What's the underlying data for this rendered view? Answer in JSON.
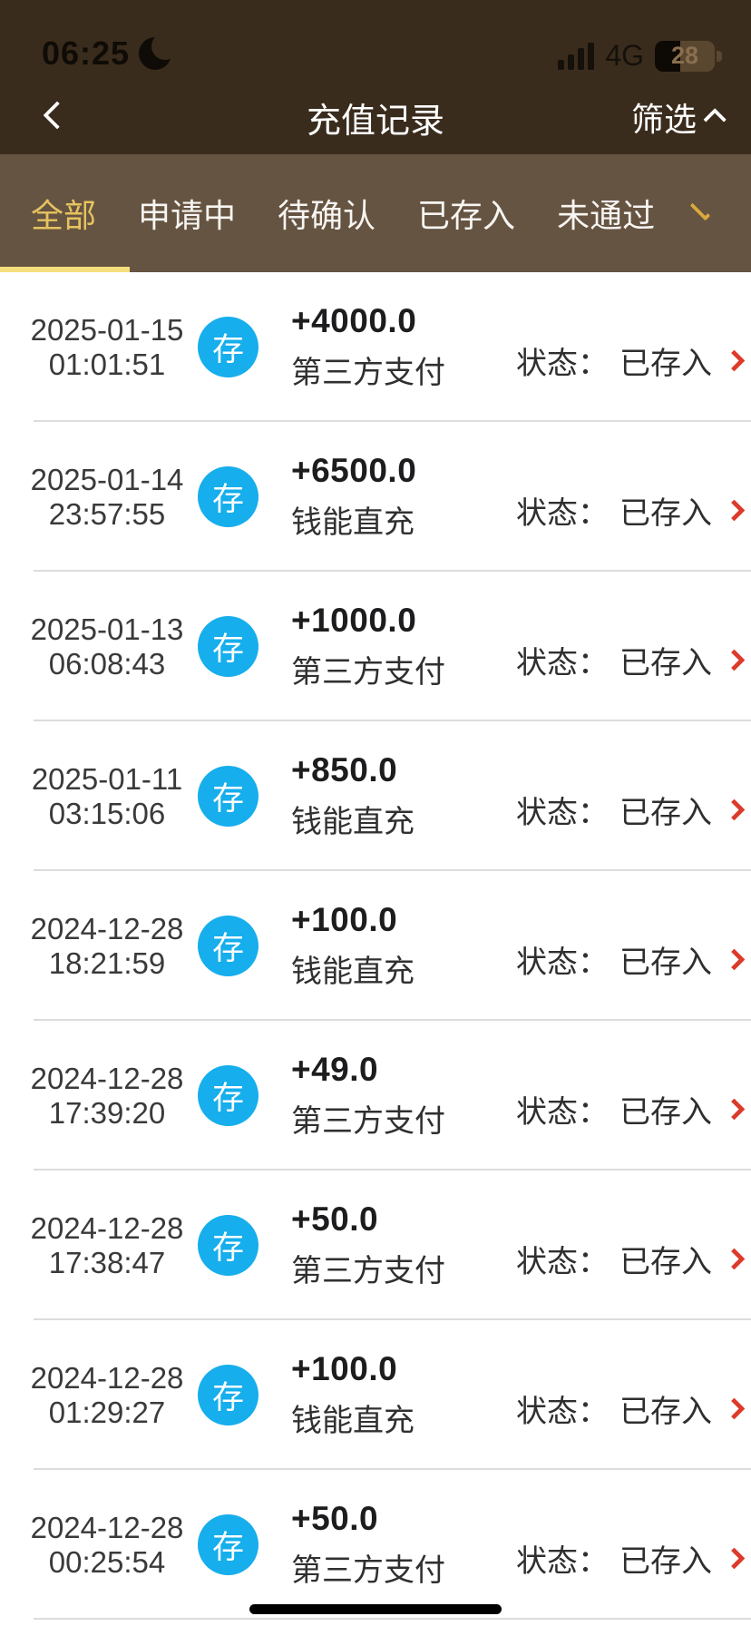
{
  "status_bar": {
    "time": "06:25",
    "moon_icon": "crescent-moon",
    "signal_icon": "signal-bars-4",
    "network": "4G",
    "battery_percent": "28"
  },
  "nav": {
    "back_icon": "chevron-left",
    "title": "充值记录",
    "filter_label": "筛选",
    "filter_icon": "chevron-up"
  },
  "tab_bar": {
    "items": [
      {
        "label": "全部",
        "active": true
      },
      {
        "label": "申请中",
        "active": false
      },
      {
        "label": "待确认",
        "active": false
      },
      {
        "label": "已存入",
        "active": false
      },
      {
        "label": "未通过",
        "active": false
      }
    ],
    "more_icon": "chevron-down",
    "active_color": "#e6c35f",
    "underline_color": "#f6e07d"
  },
  "list": {
    "status_label": "状态：",
    "deposit_icon_color": "#16aeec",
    "chevron_color": "#dd3b2a",
    "records": [
      {
        "date": "2025-01-15",
        "time": "01:01:51",
        "icon_text": "存",
        "amount": "+4000.0",
        "method": "第三方支付",
        "status": "已存入"
      },
      {
        "date": "2025-01-14",
        "time": "23:57:55",
        "icon_text": "存",
        "amount": "+6500.0",
        "method": "钱能直充",
        "status": "已存入"
      },
      {
        "date": "2025-01-13",
        "time": "06:08:43",
        "icon_text": "存",
        "amount": "+1000.0",
        "method": "第三方支付",
        "status": "已存入"
      },
      {
        "date": "2025-01-11",
        "time": "03:15:06",
        "icon_text": "存",
        "amount": "+850.0",
        "method": "钱能直充",
        "status": "已存入"
      },
      {
        "date": "2024-12-28",
        "time": "18:21:59",
        "icon_text": "存",
        "amount": "+100.0",
        "method": "钱能直充",
        "status": "已存入"
      },
      {
        "date": "2024-12-28",
        "time": "17:39:20",
        "icon_text": "存",
        "amount": "+49.0",
        "method": "第三方支付",
        "status": "已存入"
      },
      {
        "date": "2024-12-28",
        "time": "17:38:47",
        "icon_text": "存",
        "amount": "+50.0",
        "method": "第三方支付",
        "status": "已存入"
      },
      {
        "date": "2024-12-28",
        "time": "01:29:27",
        "icon_text": "存",
        "amount": "+100.0",
        "method": "钱能直充",
        "status": "已存入"
      },
      {
        "date": "2024-12-28",
        "time": "00:25:54",
        "icon_text": "存",
        "amount": "+50.0",
        "method": "第三方支付",
        "status": "已存入"
      }
    ]
  }
}
